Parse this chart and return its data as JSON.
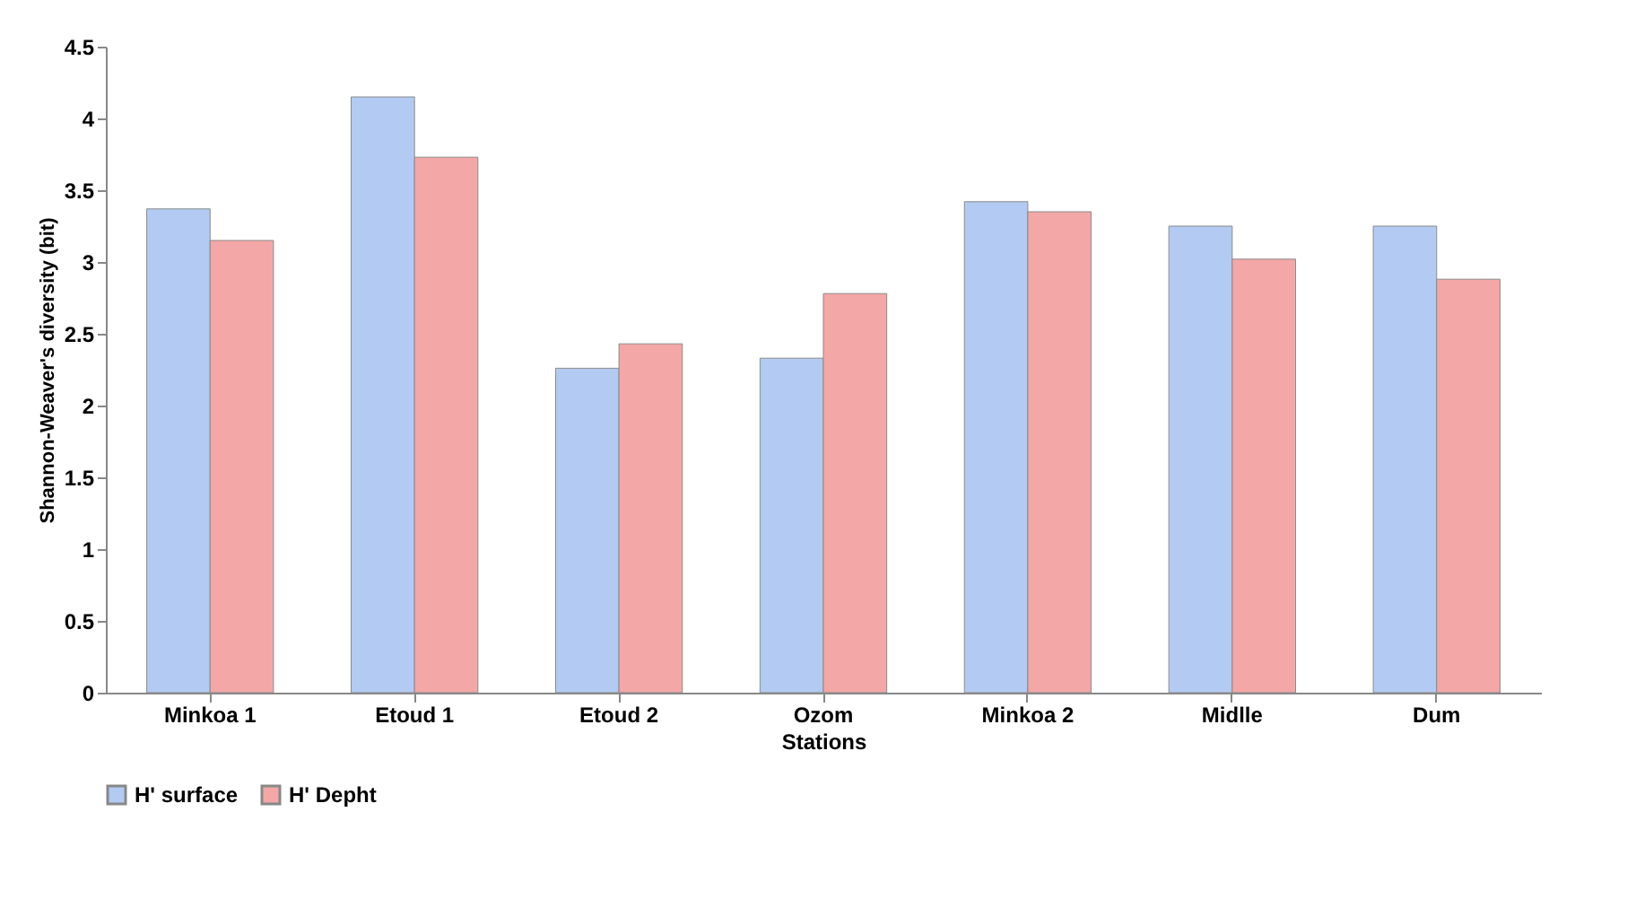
{
  "chart_data": {
    "type": "bar",
    "xlabel": "Stations",
    "ylabel": "Shannon-Weaver's diversity (bit)",
    "categories": [
      "Minkoa 1",
      "Etoud 1",
      "Etoud 2",
      "Ozom",
      "Minkoa 2",
      "Midlle",
      "Dum"
    ],
    "series": [
      {
        "name": "H' surface",
        "color": "#b3cbf2",
        "values": [
          3.37,
          4.15,
          2.26,
          2.33,
          3.42,
          3.25,
          3.25
        ]
      },
      {
        "name": "H' Depht",
        "color": "#f4a7a7",
        "values": [
          3.15,
          3.73,
          2.43,
          2.78,
          3.35,
          3.02,
          2.88
        ]
      }
    ],
    "ylim": [
      0,
      4.5
    ],
    "yticks": [
      0,
      0.5,
      1,
      1.5,
      2,
      2.5,
      3,
      3.5,
      4,
      4.5
    ],
    "grid": false,
    "legend": "bottom"
  }
}
